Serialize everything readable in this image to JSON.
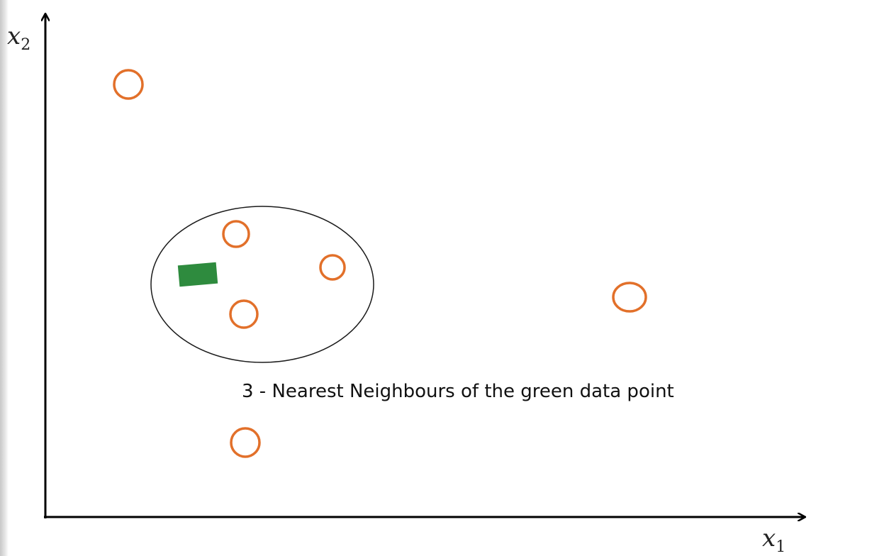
{
  "diagram": {
    "x_axis_label": "x",
    "x_axis_subscript": "1",
    "y_axis_label": "x",
    "y_axis_subscript": "2",
    "caption": "3 - Nearest Neighbours of the green data point",
    "k": 3,
    "query_point_color": "#2e8b3e",
    "neighbor_color": "#e2702a",
    "points": [
      {
        "id": "p1",
        "neighbor": false
      },
      {
        "id": "p2",
        "neighbor": true
      },
      {
        "id": "p3",
        "neighbor": true
      },
      {
        "id": "p4",
        "neighbor": true
      },
      {
        "id": "p5",
        "neighbor": false
      },
      {
        "id": "p6",
        "neighbor": false
      }
    ]
  }
}
